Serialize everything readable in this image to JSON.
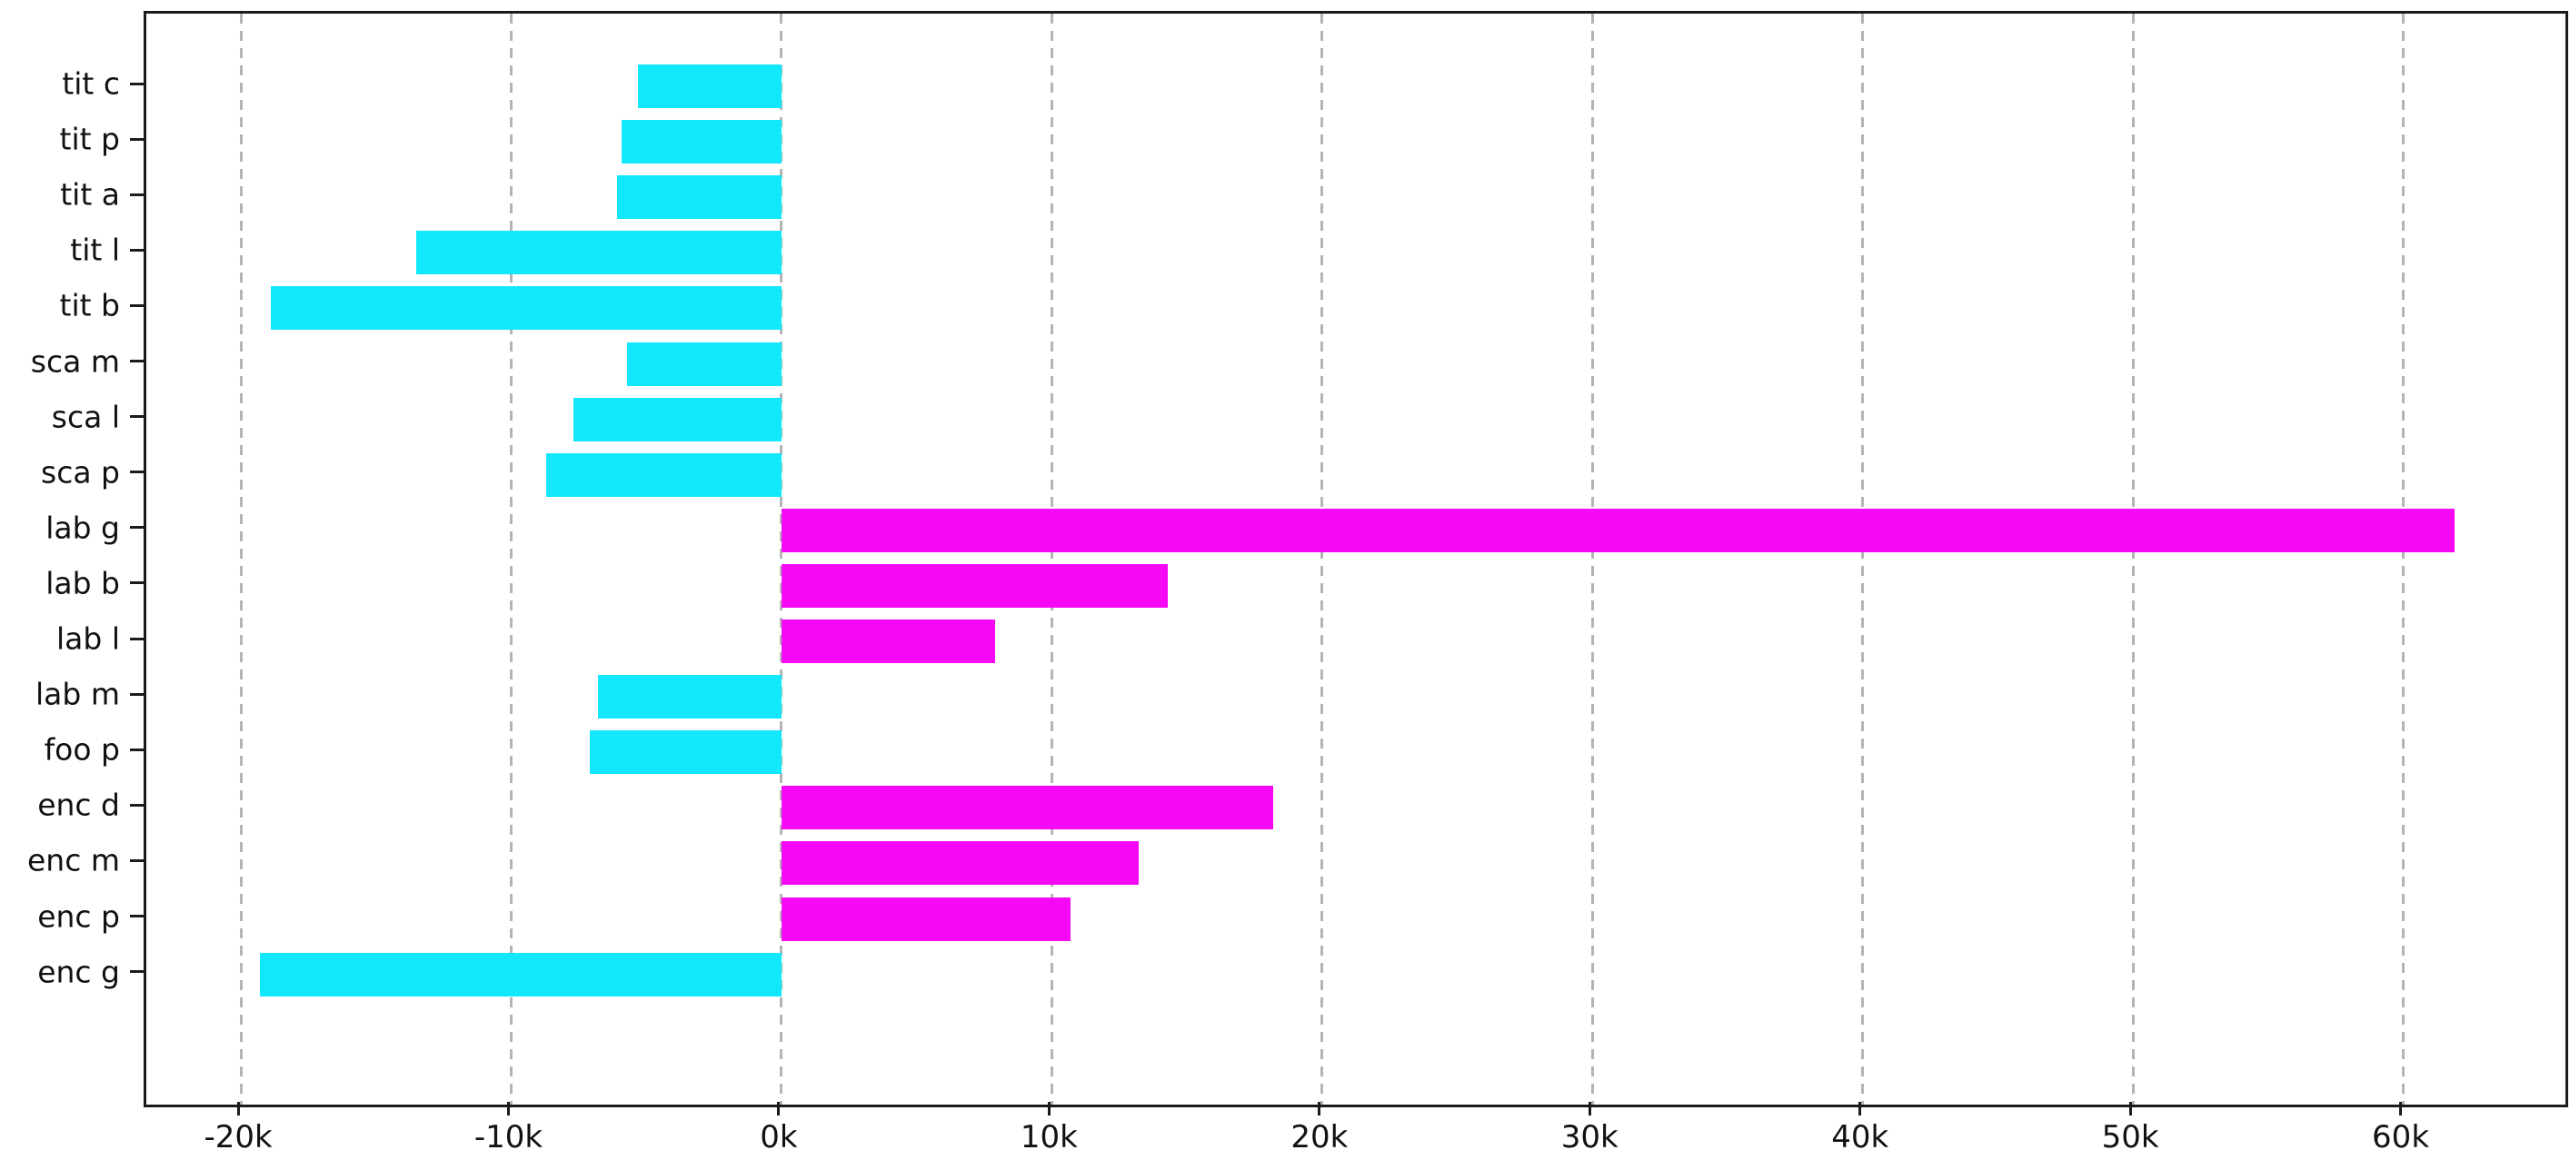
{
  "figure": {
    "background": "#ffffff",
    "spine_color": "#1b1b1b",
    "gridline_color": "#b4b4b4",
    "tick_label_color": "#111111"
  },
  "chart_data": {
    "type": "bar",
    "orientation": "horizontal",
    "title": "",
    "xlabel": "",
    "ylabel": "",
    "legend_position": "none",
    "grid": {
      "vertical": true,
      "style": "dashed",
      "color": "#b4b4b4"
    },
    "categories": [
      "tit c",
      "tit p",
      "tit a",
      "tit l",
      "tit b",
      "sca m",
      "sca l",
      "sca p",
      "lab g",
      "lab b",
      "lab l",
      "lab m",
      "foo p",
      "enc d",
      "enc m",
      "enc p",
      "enc g"
    ],
    "values": [
      -5300,
      -5900,
      -6100,
      -13500,
      -18900,
      -5700,
      -7700,
      -8700,
      61900,
      14300,
      7900,
      -6800,
      -7100,
      18200,
      13200,
      10700,
      -19300
    ],
    "bar_colors": {
      "positive": "#f607f6",
      "negative": "#12e7fc"
    },
    "xlim": [
      -23500,
      66000
    ],
    "x_ticks": [
      {
        "value": -20000,
        "label": "-20k"
      },
      {
        "value": -10000,
        "label": "-10k"
      },
      {
        "value": 0,
        "label": "0k"
      },
      {
        "value": 10000,
        "label": "10k"
      },
      {
        "value": 20000,
        "label": "20k"
      },
      {
        "value": 30000,
        "label": "30k"
      },
      {
        "value": 40000,
        "label": "40k"
      },
      {
        "value": 50000,
        "label": "50k"
      },
      {
        "value": 60000,
        "label": "60k"
      }
    ]
  }
}
